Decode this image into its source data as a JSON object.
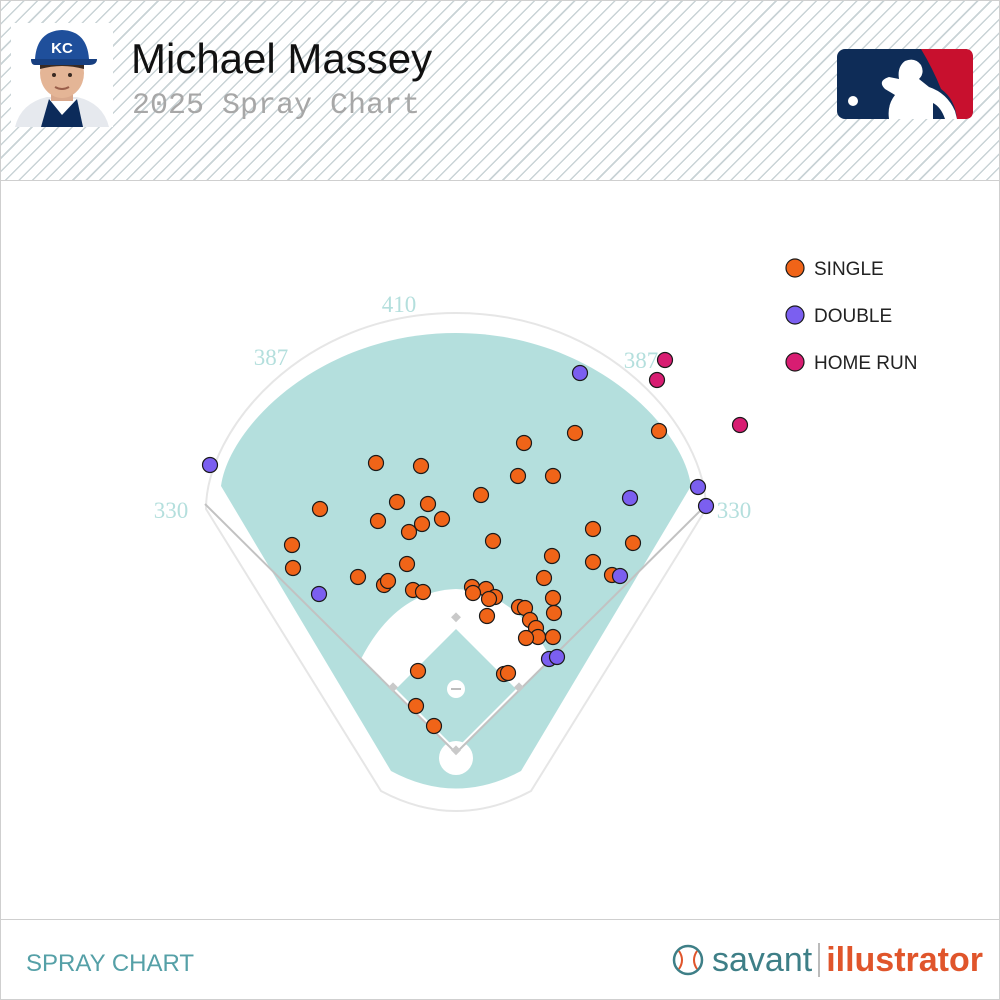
{
  "header": {
    "player_name": "Michael Massey",
    "subtitle": "2025 Spray Chart",
    "avatar_icon": "player-headshot-icon",
    "logo_icon": "mlb-logo-icon"
  },
  "footer": {
    "label": "SPRAY CHART",
    "brand_savant": "savant",
    "brand_illustrator": "illustrator",
    "brand_icon": "baseball-icon"
  },
  "chart_data": {
    "type": "scatter",
    "title": "",
    "xlabel": "",
    "ylabel": "",
    "grid": false,
    "legend_position": "top-right",
    "fence_labels": {
      "left": "330",
      "left_center": "387",
      "center": "410",
      "right_center": "387",
      "right": "330"
    },
    "colors": {
      "single": "#f06418",
      "double": "#7b5ff0",
      "home_run": "#d81d72",
      "field": "#b4dfdd",
      "fence_labels": "#b4dfdd"
    },
    "series": [
      {
        "name": "SINGLE",
        "key": "single",
        "x": [
          375,
          420,
          523,
          574,
          658,
          517,
          552,
          319,
          396,
          427,
          480,
          377,
          408,
          421,
          441,
          291,
          292,
          357,
          383,
          387,
          406,
          412,
          422,
          471,
          485,
          472,
          494,
          488,
          486,
          492,
          518,
          524,
          529,
          535,
          537,
          552,
          553,
          543,
          551,
          592,
          592,
          632,
          611,
          552,
          417,
          503,
          507,
          525,
          415,
          433
        ],
        "y": [
          462,
          465,
          442,
          432,
          430,
          475,
          475,
          508,
          501,
          503,
          494,
          520,
          531,
          523,
          518,
          544,
          567,
          576,
          584,
          580,
          563,
          589,
          591,
          586,
          588,
          592,
          596,
          598,
          615,
          540,
          606,
          607,
          619,
          627,
          636,
          597,
          612,
          577,
          555,
          528,
          561,
          542,
          574,
          636,
          670,
          673,
          672,
          637,
          705,
          725
        ]
      },
      {
        "name": "DOUBLE",
        "key": "double",
        "x": [
          209,
          579,
          629,
          697,
          705,
          318,
          619,
          548,
          556
        ],
        "y": [
          464,
          372,
          497,
          486,
          505,
          593,
          575,
          658,
          656
        ]
      },
      {
        "name": "HOME RUN",
        "key": "home_run",
        "x": [
          664,
          656,
          739
        ],
        "y": [
          359,
          379,
          424
        ]
      }
    ]
  }
}
